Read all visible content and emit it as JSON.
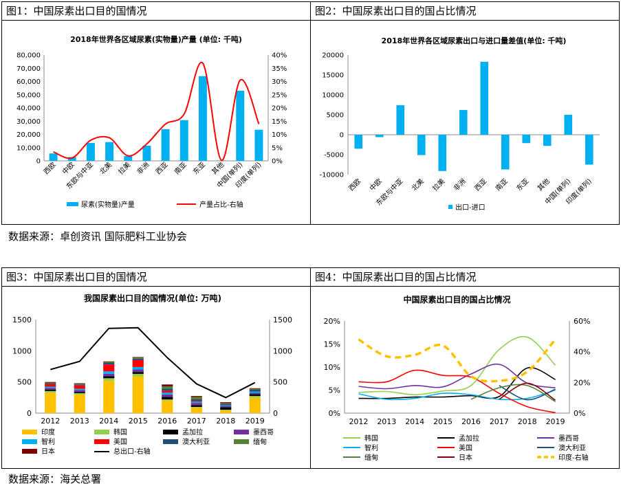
{
  "sources": {
    "top": "数据来源：卓创资讯    国际肥料工业协会",
    "bottom": "数据来源：海关总署"
  },
  "colors": {
    "bar_blue": "#00B0F0",
    "line_red": "#FF0000",
    "line_black": "#000000"
  },
  "fig1": {
    "panel_title": "图1：中国尿素出口目的国情况",
    "chart_data": {
      "type": "bar",
      "title": "2018年世界各区域尿素(实物量)产量 (单位: 千吨)",
      "categories": [
        "西欧",
        "中欧",
        "东欧与中亚",
        "北美",
        "拉美",
        "非洲",
        "西亚",
        "南亚",
        "东亚",
        "其他",
        "中国(单列)",
        "印度(单列)"
      ],
      "series": [
        {
          "name": "尿素(实物量)产量",
          "type": "bar",
          "axis": "left",
          "values": [
            5600,
            2800,
            13500,
            14200,
            3600,
            11500,
            24000,
            30800,
            64000,
            300,
            53000,
            23500
          ]
        },
        {
          "name": "产量占比-右轴",
          "type": "line",
          "axis": "right",
          "values": [
            3.4,
            1.1,
            7.8,
            8.7,
            1.9,
            6.4,
            13.9,
            17.7,
            36.9,
            0.2,
            30.5,
            13.9
          ]
        }
      ],
      "ylim": [
        0,
        80000
      ],
      "yticks": [
        "0",
        "10,000",
        "20,000",
        "30,000",
        "40,000",
        "50,000",
        "60,000",
        "70,000",
        "80,000"
      ],
      "y2lim": [
        0,
        40
      ],
      "y2ticks": [
        "0%",
        "5%",
        "10%",
        "15%",
        "20%",
        "25%",
        "30%",
        "35%",
        "40%"
      ],
      "legend": [
        "尿素(实物量)产量",
        "产量占比-右轴"
      ]
    }
  },
  "fig2": {
    "panel_title": "图2：中国尿素出口目的国占比情况",
    "chart_data": {
      "type": "bar",
      "title": "2018年世界各区域尿素出口与进口量差值(单位: 千吨)",
      "categories": [
        "西欧",
        "中欧",
        "东欧与中亚",
        "北美",
        "拉美",
        "非洲",
        "西亚",
        "南亚",
        "东亚",
        "其他",
        "中国(单列)",
        "印度(单列)"
      ],
      "series": [
        {
          "name": "出口-进口",
          "values": [
            -3500,
            -600,
            7400,
            -5100,
            -9100,
            6200,
            18300,
            -8700,
            -2100,
            -2800,
            5000,
            -7500
          ]
        }
      ],
      "ylim": [
        -10000,
        20000
      ],
      "yticks": [
        "-10000",
        "-5000",
        "0",
        "5000",
        "10000",
        "15000",
        "20000"
      ],
      "legend": [
        "出口-进口"
      ]
    }
  },
  "fig3": {
    "panel_title": "图3：中国尿素出口目的国情况",
    "chart_data": {
      "type": "bar",
      "stacked": true,
      "title": "我国尿素出口目的国情况(单位: 万吨)",
      "categories": [
        "2012",
        "2013",
        "2014",
        "2015",
        "2016",
        "2017",
        "2018",
        "2019"
      ],
      "series": [
        {
          "name": "印度",
          "color": "#FFC000",
          "values": [
            330,
            300,
            520,
            590,
            200,
            90,
            45,
            250
          ]
        },
        {
          "name": "韩国",
          "color": "#92D050",
          "values": [
            25,
            20,
            40,
            40,
            20,
            10,
            10,
            25
          ]
        },
        {
          "name": "孟加拉",
          "color": "#000000",
          "values": [
            20,
            20,
            30,
            30,
            40,
            30,
            40,
            30
          ]
        },
        {
          "name": "墨西哥",
          "color": "#7030A0",
          "values": [
            30,
            30,
            40,
            40,
            40,
            30,
            20,
            20
          ]
        },
        {
          "name": "智利",
          "color": "#00B0F0",
          "values": [
            20,
            20,
            40,
            40,
            30,
            20,
            10,
            20
          ]
        },
        {
          "name": "美国",
          "color": "#FF0000",
          "values": [
            40,
            55,
            110,
            110,
            30,
            15,
            0,
            0
          ]
        },
        {
          "name": "澳大利亚",
          "color": "#1F4E79",
          "values": [
            15,
            15,
            25,
            25,
            35,
            30,
            20,
            30
          ]
        },
        {
          "name": "缅甸",
          "color": "#548235",
          "values": [
            10,
            10,
            15,
            15,
            35,
            35,
            15,
            15
          ]
        },
        {
          "name": "日本",
          "color": "#800000",
          "values": [
            10,
            10,
            10,
            10,
            30,
            15,
            15,
            10
          ]
        },
        {
          "name": "总出口-右轴",
          "type": "line",
          "color": "#000000",
          "values": [
            700,
            830,
            1360,
            1370,
            890,
            470,
            250,
            490
          ]
        }
      ],
      "ylim": [
        0,
        1500
      ],
      "yticks": [
        "0",
        "500",
        "1000",
        "1500"
      ],
      "y2ticks": [
        "0",
        "500",
        "1000",
        "1500"
      ]
    }
  },
  "fig4": {
    "panel_title": "图4：中国尿素出口目的国占比情况",
    "chart_data": {
      "type": "line",
      "title": "中国尿素出口目的国占比情况",
      "categories": [
        "2012",
        "2013",
        "2014",
        "2015",
        "2016",
        "2017",
        "2018",
        "2019"
      ],
      "series": [
        {
          "name": "韩国",
          "color": "#92D050",
          "values": [
            4.5,
            4.7,
            4.0,
            4.8,
            6.0,
            13.8,
            16.5,
            10.4
          ]
        },
        {
          "name": "孟加拉",
          "color": "#000000",
          "values": [
            3.2,
            3.2,
            3.5,
            3.5,
            3.8,
            3.6,
            9.8,
            7.3
          ]
        },
        {
          "name": "墨西哥",
          "color": "#7030A0",
          "values": [
            5.8,
            5.3,
            6.0,
            5.7,
            8.5,
            10.6,
            6.5,
            5.5
          ]
        },
        {
          "name": "智利",
          "color": "#00B0F0",
          "values": [
            4.2,
            3.0,
            3.2,
            4.3,
            4.0,
            3.0,
            3.2,
            5.0
          ]
        },
        {
          "name": "美国",
          "color": "#FF0000",
          "values": [
            6.8,
            6.8,
            9.3,
            8.2,
            7.8,
            4.3,
            1.4,
            0.1
          ]
        },
        {
          "name": "澳大利亚",
          "color": "#1F4E79",
          "values": [
            null,
            null,
            null,
            null,
            null,
            6.0,
            2.9,
            5.2
          ]
        },
        {
          "name": "缅甸",
          "color": "#548235",
          "values": [
            null,
            null,
            null,
            null,
            3.0,
            5.5,
            6.0,
            2.5
          ]
        },
        {
          "name": "日本",
          "color": "#800000",
          "values": [
            null,
            null,
            null,
            null,
            null,
            3.0,
            6.5,
            2.8
          ]
        },
        {
          "name": "印度-右轴",
          "color": "#FFC000",
          "dashed": true,
          "axis": "right",
          "values": [
            48,
            37,
            38,
            44,
            24,
            21,
            27,
            48
          ]
        }
      ],
      "ylim": [
        0,
        20
      ],
      "yticks": [
        "0%",
        "5%",
        "10%",
        "15%",
        "20%"
      ],
      "y2lim": [
        0,
        60
      ],
      "y2ticks": [
        "0%",
        "20%",
        "40%",
        "60%"
      ]
    }
  }
}
